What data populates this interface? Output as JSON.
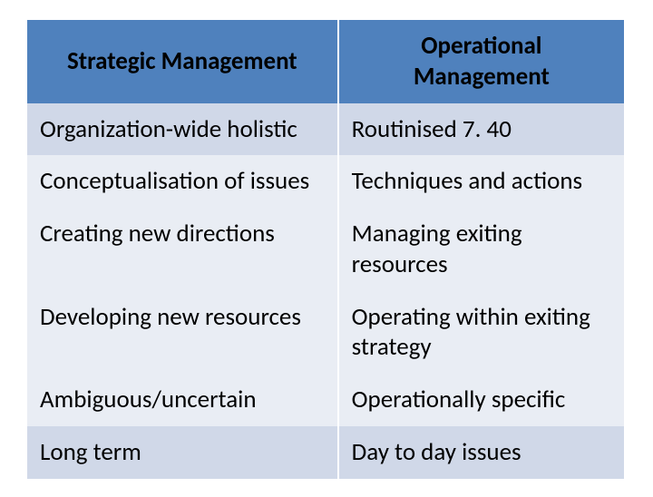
{
  "table": {
    "type": "table",
    "columns": [
      {
        "label": "Strategic Management",
        "width_pct": 52,
        "align": "center"
      },
      {
        "label": "Operational Management",
        "width_pct": 48,
        "align": "center"
      }
    ],
    "rows": [
      [
        "Organization-wide holistic",
        "Routinised 7. 40"
      ],
      [
        "Conceptualisation of issues",
        "Techniques and actions"
      ],
      [
        "Creating new directions",
        "Managing exiting resources"
      ],
      [
        "Developing new resources",
        "Operating within exiting strategy"
      ],
      [
        "Ambiguous/uncertain",
        "Operationally specific"
      ],
      [
        "Long term",
        "Day to day issues"
      ]
    ],
    "header_bg": "#4f81bd",
    "band_a_bg": "#d0d8e8",
    "band_b_bg": "#e9edf4",
    "row_band_pattern": [
      "a",
      "b",
      "b",
      "b",
      "b",
      "a"
    ],
    "font_family": "Calibri",
    "header_fontsize_pt": 27,
    "cell_fontsize_pt": 27,
    "header_font_weight": 700,
    "cell_font_weight": 400,
    "text_color": "#000000",
    "border_color": "#ffffff",
    "background_color": "#ffffff"
  }
}
